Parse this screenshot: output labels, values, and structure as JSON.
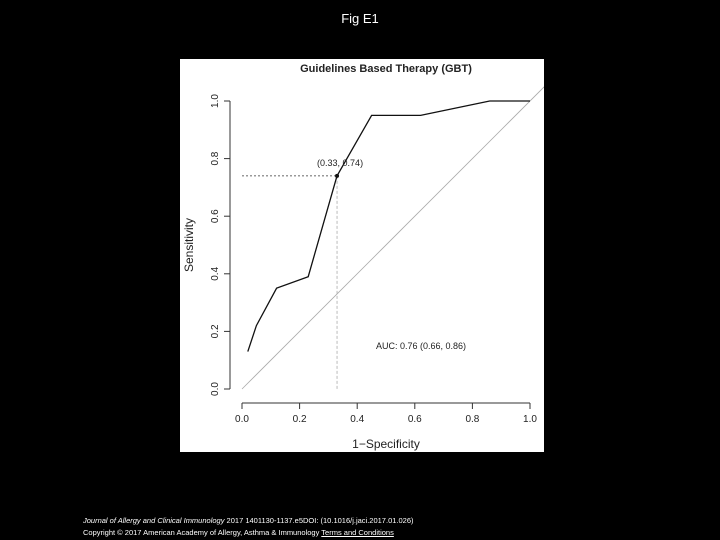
{
  "slide": {
    "title": "Fig E1"
  },
  "citation": {
    "journal": "Journal of Allergy and Clinical Immunology",
    "details": " 2017 1401130-1137.e5DOI: (10.1016/j.jaci.2017.01.026) ",
    "copyright": "Copyright © 2017 American Academy of Allergy, Asthma & Immunology",
    "terms_link": "Terms and Conditions"
  },
  "chart_data": {
    "type": "line",
    "title": "Guidelines Based Therapy (GBT)",
    "xlabel": "1−Specificity",
    "ylabel": "Sensitivity",
    "xlim": [
      0,
      1
    ],
    "ylim": [
      0,
      1
    ],
    "x_ticks": [
      "0.0",
      "0.2",
      "0.4",
      "0.6",
      "0.8",
      "1.0"
    ],
    "y_ticks": [
      "0.0",
      "0.2",
      "0.4",
      "0.6",
      "0.8",
      "1.0"
    ],
    "series": [
      {
        "x": [
          0.02,
          0.05,
          0.12,
          0.23,
          0.33,
          0.45,
          0.62,
          0.86,
          1.0
        ],
        "y": [
          0.13,
          0.22,
          0.35,
          0.39,
          0.74,
          0.95,
          0.95,
          1.0,
          1.0
        ]
      }
    ],
    "reference_line": {
      "x": [
        0,
        1
      ],
      "y": [
        0,
        1
      ]
    },
    "highlight_point": {
      "x": 0.33,
      "y": 0.74,
      "label": "(0.33, 0.74)"
    },
    "annotation": "AUC: 0.76 (0.66, 0.86)",
    "grid": false
  }
}
